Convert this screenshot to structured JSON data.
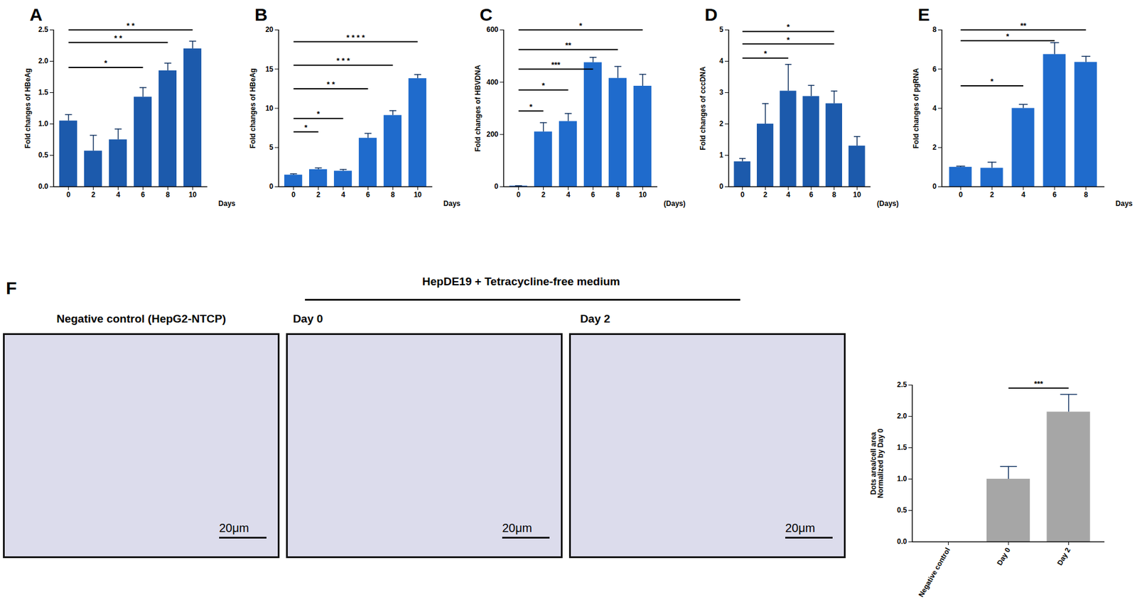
{
  "chart_data": [
    {
      "panel": "A",
      "type": "bar",
      "color": "#1c5aac",
      "ylabel": "Fold changes of HBeAg",
      "xlabel": "Days",
      "categories": [
        "0",
        "2",
        "4",
        "6",
        "8",
        "10"
      ],
      "values": [
        1.05,
        0.57,
        0.75,
        1.43,
        1.85,
        2.2
      ],
      "errors": [
        0.1,
        0.25,
        0.17,
        0.15,
        0.12,
        0.12
      ],
      "ylim": [
        0,
        2.5
      ],
      "yticks": [
        {
          "value": 0,
          "label": "0.0"
        },
        {
          "value": 0.5,
          "label": "0.5"
        },
        {
          "value": 1,
          "label": "1.0"
        },
        {
          "value": 1.5,
          "label": "1.5"
        },
        {
          "value": 2,
          "label": "2.0"
        },
        {
          "value": 2.5,
          "label": "2.5"
        }
      ],
      "significance": [
        {
          "from": "0",
          "to": "6",
          "y": 1.9,
          "label": "*"
        },
        {
          "from": "0",
          "to": "8",
          "y": 2.3,
          "label": "* *"
        },
        {
          "from": "0",
          "to": "10",
          "y": 2.5,
          "label": "* *"
        }
      ]
    },
    {
      "panel": "B",
      "type": "bar",
      "color": "#1f6bcc",
      "ylabel": "Fold changes of HBeAg",
      "xlabel": "Days",
      "categories": [
        "0",
        "2",
        "4",
        "6",
        "8",
        "10"
      ],
      "values": [
        1.5,
        2.2,
        2.0,
        6.2,
        9.1,
        13.8
      ],
      "errors": [
        0.15,
        0.2,
        0.2,
        0.6,
        0.6,
        0.5
      ],
      "ylim": [
        0,
        20
      ],
      "yticks": [
        0,
        5,
        10,
        15,
        20
      ],
      "significance": [
        {
          "from": "0",
          "to": "2",
          "y": 7,
          "label": "*"
        },
        {
          "from": "0",
          "to": "4",
          "y": 8.7,
          "label": "*"
        },
        {
          "from": "0",
          "to": "6",
          "y": 12.5,
          "label": "* *"
        },
        {
          "from": "0",
          "to": "8",
          "y": 15.5,
          "label": "* * *"
        },
        {
          "from": "0",
          "to": "10",
          "y": 18.5,
          "label": "* * * *"
        }
      ]
    },
    {
      "panel": "C",
      "type": "bar",
      "color": "#1f6bcc",
      "ylabel": "Fold changes of HBVDNA",
      "xlabel": "(Days)",
      "categories": [
        "0",
        "2",
        "4",
        "6",
        "8",
        "10"
      ],
      "values": [
        3,
        210,
        250,
        475,
        415,
        385
      ],
      "errors": [
        1,
        35,
        30,
        20,
        45,
        45
      ],
      "ylim": [
        0,
        600
      ],
      "yticks": [
        0,
        200,
        400,
        600
      ],
      "significance": [
        {
          "from": "0",
          "to": "2",
          "y": 290,
          "label": "*"
        },
        {
          "from": "0",
          "to": "4",
          "y": 370,
          "label": "*"
        },
        {
          "from": "0",
          "to": "6",
          "y": 450,
          "label": "***"
        },
        {
          "from": "0",
          "to": "8",
          "y": 525,
          "label": "**"
        },
        {
          "from": "0",
          "to": "10",
          "y": 600,
          "label": "*"
        }
      ]
    },
    {
      "panel": "D",
      "type": "bar",
      "color": "#1c5aac",
      "ylabel": "Fold changes of cccDNA",
      "xlabel": "(Days)",
      "categories": [
        "0",
        "2",
        "4",
        "6",
        "8",
        "10"
      ],
      "values": [
        0.8,
        2.0,
        3.05,
        2.88,
        2.65,
        1.3
      ],
      "errors": [
        0.1,
        0.65,
        0.85,
        0.35,
        0.4,
        0.3
      ],
      "ylim": [
        0,
        5
      ],
      "yticks": [
        0,
        1,
        2,
        3,
        4,
        5
      ],
      "significance": [
        {
          "from": "0",
          "to": "4",
          "y": 4.1,
          "label": "*"
        },
        {
          "from": "0",
          "to": "8",
          "y": 4.55,
          "label": "*"
        },
        {
          "from": "0",
          "to": "8",
          "y": 4.95,
          "label": "*"
        }
      ]
    },
    {
      "panel": "E",
      "type": "bar",
      "color": "#1f6bcc",
      "ylabel": "Fold changes of pgRNA",
      "xlabel": "Days",
      "categories": [
        "0",
        "2",
        "4",
        "6",
        "8"
      ],
      "values": [
        1.0,
        0.95,
        4.0,
        6.75,
        6.35
      ],
      "errors": [
        0.05,
        0.3,
        0.2,
        0.6,
        0.3
      ],
      "ylim": [
        0,
        8
      ],
      "yticks": [
        0,
        2,
        4,
        6,
        8
      ],
      "significance": [
        {
          "from": "0",
          "to": "4",
          "y": 5.15,
          "label": "*"
        },
        {
          "from": "0",
          "to": "6",
          "y": 7.45,
          "label": "*"
        },
        {
          "from": "0",
          "to": "8",
          "y": 8,
          "label": "**"
        }
      ]
    },
    {
      "panel": "F",
      "type": "bar",
      "color": "#a6a6a6",
      "ylabel": "Dots area/cell area\nNormalized by Day 0",
      "categories": [
        "Negative control",
        "Day 0",
        "Day 2"
      ],
      "values": [
        0,
        1.0,
        2.07
      ],
      "errors": [
        0,
        0.2,
        0.28
      ],
      "ylim": [
        0,
        2.5
      ],
      "yticks": [
        {
          "value": 0,
          "label": "0.0"
        },
        {
          "value": 0.5,
          "label": "0.5"
        },
        {
          "value": 1,
          "label": "1.0"
        },
        {
          "value": 1.5,
          "label": "1.5"
        },
        {
          "value": 2,
          "label": "2.0"
        },
        {
          "value": 2.5,
          "label": "2.5"
        }
      ],
      "significance": [
        {
          "from": "Day 0",
          "to": "Day 2",
          "y": 2.45,
          "label": "***"
        }
      ]
    }
  ],
  "images": {
    "group_label": "HepDE19 + Tetracycline-free medium",
    "panels": [
      {
        "title": "Negative control (HepG2-NTCP)",
        "scale_bar": "20μm"
      },
      {
        "title": "Day 0",
        "scale_bar": "20μm"
      },
      {
        "title": "Day 2",
        "scale_bar": "20μm"
      }
    ]
  }
}
